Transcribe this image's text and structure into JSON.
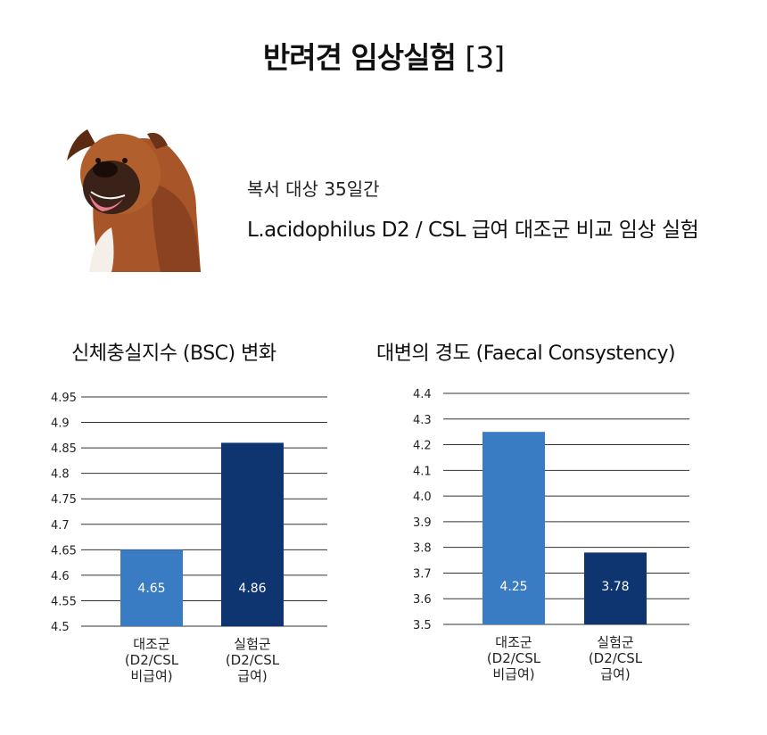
{
  "header": {
    "title": "반려견 임상실험",
    "title_suffix": "[3]"
  },
  "intro": {
    "subtitle": "복서 대상 35일간",
    "headline": "L.acidophilus D2 / CSL 급여 대조군 비교 임상 실험"
  },
  "colors": {
    "control": "#3a7cc4",
    "experimental": "#0e3570",
    "grid": "#333333",
    "value_label": "#ffffff"
  },
  "chart_data": [
    {
      "type": "bar",
      "title": "신체충실지수 (BSC) 변화",
      "categories": [
        [
          "대조군",
          "(D2/CSL",
          "비급여)"
        ],
        [
          "실험군",
          "(D2/CSL",
          "급여)"
        ]
      ],
      "values": [
        4.65,
        4.86
      ],
      "value_labels": [
        "4.65",
        "4.86"
      ],
      "ylim": [
        4.5,
        4.95
      ],
      "yticks": [
        "4.5",
        "4.55",
        "4.6",
        "4.65",
        "4.7",
        "4.75",
        "4.8",
        "4.85",
        "4.9",
        "4.95"
      ],
      "grid": true
    },
    {
      "type": "bar",
      "title": "대변의 경도 (Faecal Consystency)",
      "categories": [
        [
          "대조군",
          "(D2/CSL",
          "비급여)"
        ],
        [
          "실험군",
          "(D2/CSL",
          "급여)"
        ]
      ],
      "values": [
        4.25,
        3.78
      ],
      "value_labels": [
        "4.25",
        "3.78"
      ],
      "ylim": [
        3.5,
        4.4
      ],
      "yticks": [
        "3.5",
        "3.6",
        "3.7",
        "3.8",
        "3.9",
        "4.0",
        "4.1",
        "4.2",
        "4.3",
        "4.4"
      ],
      "grid": true
    }
  ]
}
